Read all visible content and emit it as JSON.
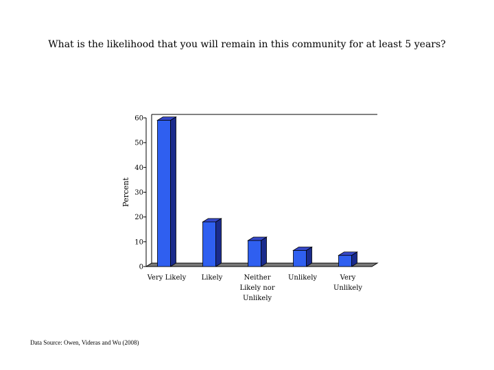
{
  "slide": {
    "title": "What is the likelihood that you will remain in this community for at least 5 years?",
    "footnote": "Data Source: Owen, Videras and Wu (2008)"
  },
  "chart_data": {
    "type": "bar",
    "title": "",
    "xlabel": "",
    "ylabel": "Percent",
    "ylim": [
      0,
      60
    ],
    "yticks": [
      0,
      10,
      20,
      30,
      40,
      50,
      60
    ],
    "categories": [
      [
        "Very Likely"
      ],
      [
        "Likely"
      ],
      [
        "Neither",
        "Likely nor",
        "Unlikely"
      ],
      [
        "Unlikely"
      ],
      [
        "Very",
        "Unlikely"
      ]
    ],
    "values": [
      59,
      18,
      10.5,
      6.5,
      4.5
    ],
    "grid": false,
    "legend": "none",
    "style": "3d",
    "colors": {
      "bar_front": "#2f5ff0",
      "bar_side": "#1a2b8c",
      "bar_top": "#3548c8",
      "floor": "#7a7a7a"
    }
  }
}
